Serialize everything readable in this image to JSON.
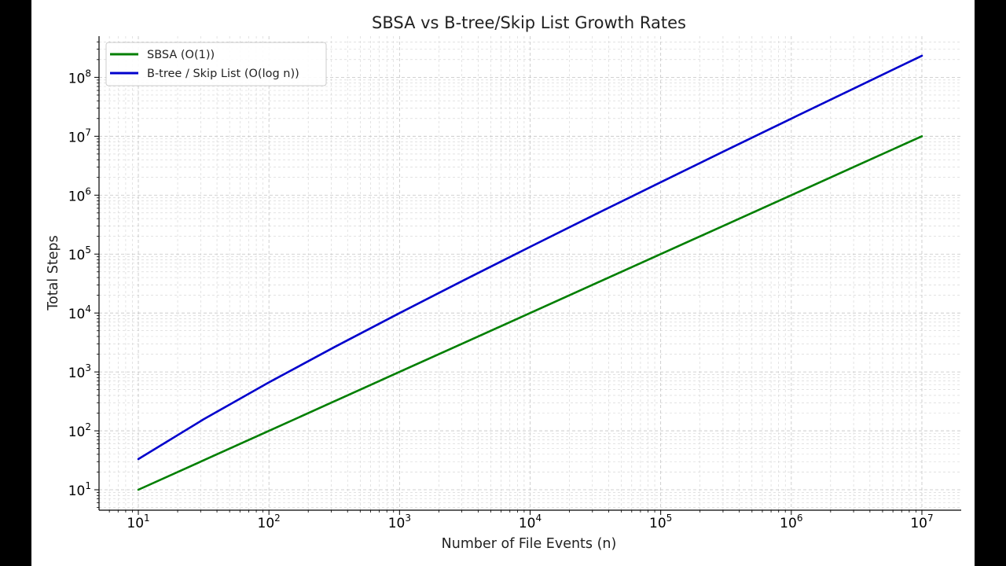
{
  "chart_data": {
    "type": "line",
    "title": "SBSA vs B-tree/Skip List Growth Rates",
    "xlabel": "Number of File Events (n)",
    "ylabel": "Total Steps",
    "xscale": "log",
    "yscale": "log",
    "xlim": [
      5,
      20000000
    ],
    "ylim": [
      4.5,
      500000000
    ],
    "grid": true,
    "legend_position": "top-left",
    "xticks": [
      {
        "base": "10",
        "exp": "1",
        "value": 10
      },
      {
        "base": "10",
        "exp": "2",
        "value": 100
      },
      {
        "base": "10",
        "exp": "3",
        "value": 1000
      },
      {
        "base": "10",
        "exp": "4",
        "value": 10000
      },
      {
        "base": "10",
        "exp": "5",
        "value": 100000
      },
      {
        "base": "10",
        "exp": "6",
        "value": 1000000
      },
      {
        "base": "10",
        "exp": "7",
        "value": 10000000
      }
    ],
    "yticks": [
      {
        "base": "10",
        "exp": "1",
        "value": 10
      },
      {
        "base": "10",
        "exp": "2",
        "value": 100
      },
      {
        "base": "10",
        "exp": "3",
        "value": 1000
      },
      {
        "base": "10",
        "exp": "4",
        "value": 10000
      },
      {
        "base": "10",
        "exp": "5",
        "value": 100000
      },
      {
        "base": "10",
        "exp": "6",
        "value": 1000000
      },
      {
        "base": "10",
        "exp": "7",
        "value": 10000000
      },
      {
        "base": "10",
        "exp": "8",
        "value": 100000000
      }
    ],
    "series": [
      {
        "name": "SBSA (O(1))",
        "color": "#007f00",
        "x": [
          10,
          31.6,
          100,
          316,
          1000,
          3160,
          10000,
          31600,
          100000,
          316000,
          1000000,
          3160000,
          10000000
        ],
        "y": [
          10,
          31.6,
          100,
          316,
          1000,
          3160,
          10000,
          31600,
          100000,
          316000,
          1000000,
          3160000,
          10000000
        ]
      },
      {
        "name": "B-tree / Skip List (O(log n))",
        "color": "#0000cc",
        "x": [
          10,
          31.6,
          100,
          316,
          1000,
          3160,
          10000,
          31600,
          100000,
          316000,
          1000000,
          3160000,
          10000000
        ],
        "y": [
          33.2,
          157,
          664,
          2624,
          9966,
          36750,
          132877,
          472400,
          1660964,
          5780000,
          19931569,
          68110000,
          232534967
        ]
      }
    ]
  }
}
